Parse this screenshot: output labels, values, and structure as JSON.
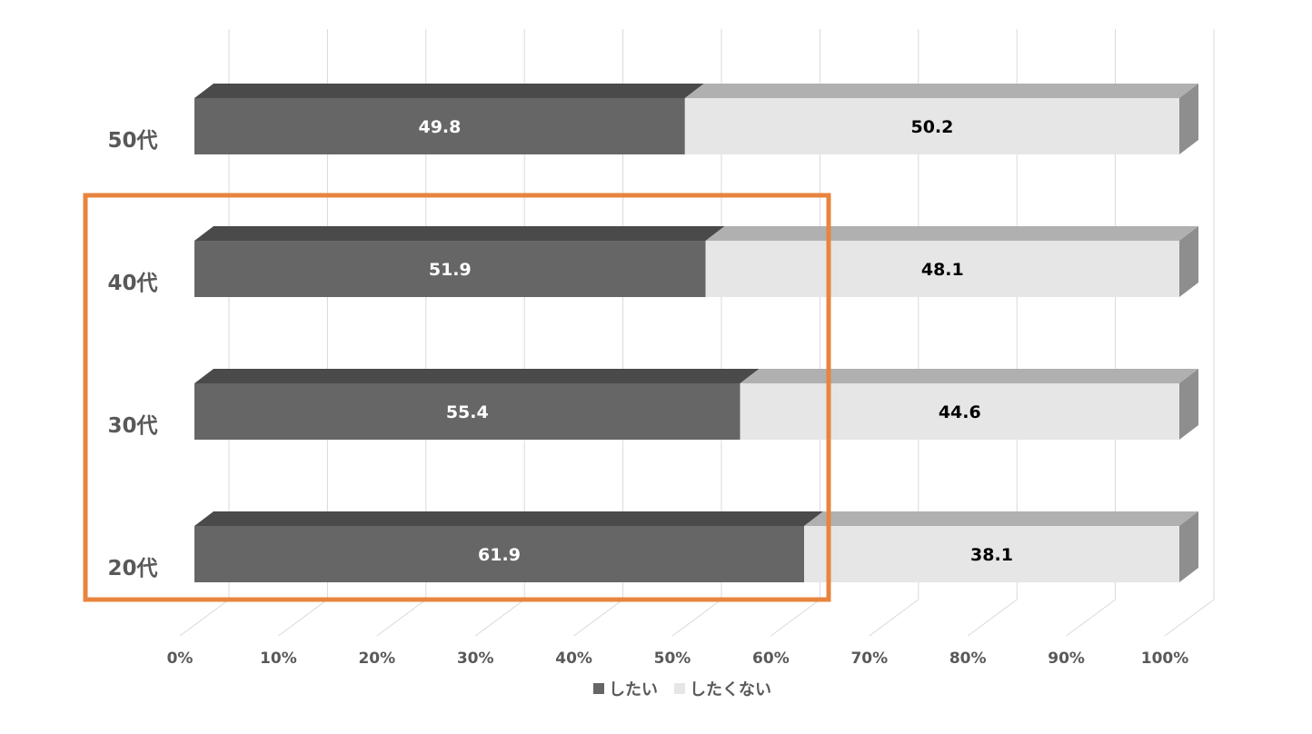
{
  "chart_data": {
    "type": "bar",
    "orientation": "horizontal",
    "stacked": true,
    "style": "3d-100%-stacked",
    "categories": [
      "50代",
      "40代",
      "30代",
      "20代"
    ],
    "series": [
      {
        "name": "したい",
        "values": [
          49.8,
          51.9,
          55.4,
          61.9
        ],
        "color": "#666666"
      },
      {
        "name": "したくない",
        "values": [
          50.2,
          48.1,
          44.6,
          38.1
        ],
        "color": "#e6e6e6"
      }
    ],
    "xlim": [
      0,
      100
    ],
    "xticks": [
      "0%",
      "10%",
      "20%",
      "30%",
      "40%",
      "50%",
      "60%",
      "70%",
      "80%",
      "90%",
      "100%"
    ],
    "grid": true,
    "legend": "bottom-center",
    "highlight": {
      "categories": [
        "40代",
        "30代",
        "20代"
      ],
      "color": "#e8843e"
    }
  },
  "colors": {
    "dark_top": "#4a4a4a",
    "light_top": "#b0b0b0",
    "side": "#8e8e8e",
    "grid": "#d9d9d9"
  }
}
